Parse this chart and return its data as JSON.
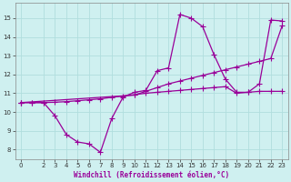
{
  "xlabel": "Windchill (Refroidissement éolien,°C)",
  "bg_color": "#cff0f0",
  "grid_color": "#b0dede",
  "line_color": "#990099",
  "xlim": [
    -0.5,
    23.5
  ],
  "ylim": [
    7.5,
    15.8
  ],
  "xtick_major": [
    0,
    2,
    3,
    4,
    5,
    6,
    7,
    8,
    9,
    10,
    11,
    12,
    13,
    14,
    15,
    16,
    17,
    18,
    19,
    20,
    21,
    22,
    23
  ],
  "ytick_major": [
    8,
    9,
    10,
    11,
    12,
    13,
    14,
    15
  ],
  "line1_x": [
    0,
    1,
    2,
    3,
    4,
    5,
    6,
    7,
    8,
    9,
    10,
    11,
    12,
    13,
    14,
    15,
    16,
    17,
    18,
    19,
    20,
    21,
    22,
    23
  ],
  "line1_y": [
    10.5,
    10.5,
    10.5,
    9.8,
    8.8,
    8.4,
    8.3,
    7.85,
    9.65,
    10.8,
    11.05,
    11.15,
    12.2,
    12.35,
    15.2,
    15.0,
    14.55,
    13.05,
    11.75,
    11.05,
    11.05,
    11.5,
    14.9,
    14.85
  ],
  "line2_x": [
    0,
    1,
    2,
    3,
    4,
    5,
    6,
    7,
    8,
    9,
    10,
    11,
    12,
    13,
    14,
    15,
    16,
    17,
    18,
    19,
    20,
    21,
    22,
    23
  ],
  "line2_y": [
    10.5,
    10.5,
    10.5,
    10.52,
    10.55,
    10.6,
    10.65,
    10.7,
    10.78,
    10.85,
    10.92,
    11.0,
    11.05,
    11.1,
    11.15,
    11.2,
    11.25,
    11.3,
    11.35,
    11.0,
    11.05,
    11.1,
    11.1,
    11.1
  ],
  "line3_x": [
    0,
    10,
    11,
    12,
    13,
    14,
    15,
    16,
    17,
    18,
    19,
    20,
    21,
    22,
    23
  ],
  "line3_y": [
    10.5,
    10.9,
    11.1,
    11.3,
    11.5,
    11.65,
    11.8,
    11.95,
    12.1,
    12.25,
    12.4,
    12.55,
    12.7,
    12.85,
    14.6
  ],
  "marker_size": 2.5,
  "line_width": 0.9
}
